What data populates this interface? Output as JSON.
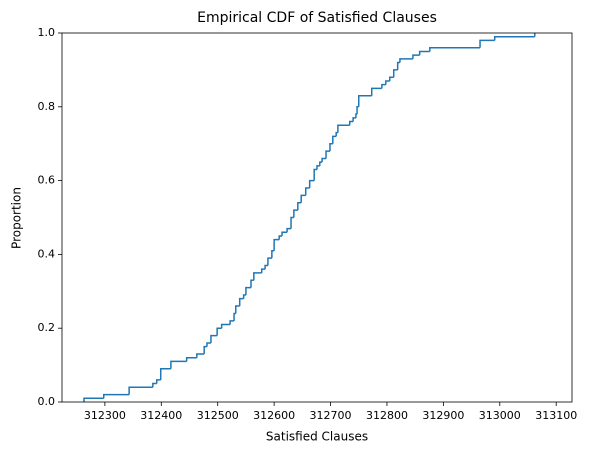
{
  "chart_data": {
    "type": "ecdf",
    "title": "Empirical CDF of Satisfied Clauses",
    "x_label": "Satisfied Clauses",
    "y_label": "Proportion",
    "color": "#1f77b4",
    "x": [
      312263,
      312298,
      312343,
      312385,
      312392,
      312399,
      312417,
      312445,
      312463,
      312476,
      312481,
      312488,
      312499,
      312507,
      312522,
      312529,
      312532,
      312539,
      312546,
      312550,
      312559,
      312564,
      312578,
      312584,
      312589,
      312596,
      312600,
      312609,
      312614,
      312623,
      312630,
      312635,
      312642,
      312648,
      312656,
      312663,
      312671,
      312676,
      312681,
      312685,
      312692,
      312699,
      312704,
      312710,
      312713,
      312734,
      312740,
      312745,
      312747,
      312750,
      312773,
      312791,
      312798,
      312805,
      312812,
      312819,
      312823,
      312846,
      312858,
      312876,
      312965,
      312991,
      313062
    ],
    "values": [
      0.01,
      0.02,
      0.04,
      0.05,
      0.06,
      0.09,
      0.11,
      0.12,
      0.13,
      0.15,
      0.16,
      0.18,
      0.2,
      0.21,
      0.22,
      0.24,
      0.26,
      0.28,
      0.29,
      0.31,
      0.33,
      0.35,
      0.36,
      0.37,
      0.39,
      0.41,
      0.44,
      0.45,
      0.46,
      0.47,
      0.5,
      0.52,
      0.54,
      0.56,
      0.58,
      0.6,
      0.63,
      0.64,
      0.65,
      0.66,
      0.68,
      0.7,
      0.72,
      0.73,
      0.75,
      0.76,
      0.77,
      0.78,
      0.8,
      0.83,
      0.85,
      0.86,
      0.87,
      0.88,
      0.9,
      0.92,
      0.93,
      0.94,
      0.95,
      0.96,
      0.98,
      0.99,
      1.0
    ],
    "xlim": [
      312224,
      313128
    ],
    "ylim": [
      0,
      1
    ],
    "xticks": [
      312300,
      312400,
      312500,
      312600,
      312700,
      312800,
      312900,
      313000,
      313100
    ],
    "yticks": [
      {
        "value": 0,
        "label": "0.0"
      },
      0.2,
      0.4,
      0.6,
      0.8,
      {
        "value": 1,
        "label": "1.0"
      }
    ]
  }
}
